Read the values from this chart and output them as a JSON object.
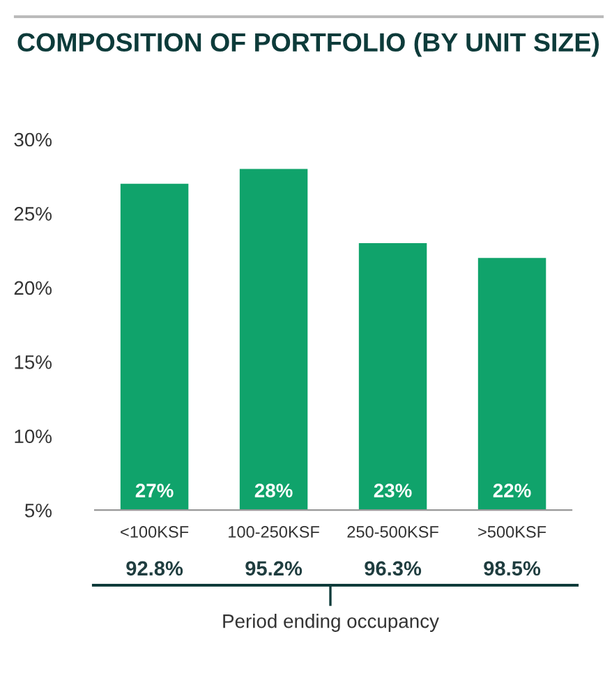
{
  "chart_data": {
    "type": "bar",
    "title": "COMPOSITION OF PORTFOLIO (BY UNIT SIZE)",
    "categories": [
      "<100KSF",
      "100-250KSF",
      "250-500KSF",
      ">500KSF"
    ],
    "values": [
      27,
      28,
      23,
      22
    ],
    "color": "#10a36b",
    "value_labels": [
      "27%",
      "28%",
      "23%",
      "22%"
    ],
    "ylim": [
      5,
      30
    ],
    "yticks": [
      {
        "value": 5,
        "label": "5%"
      },
      {
        "value": 10,
        "label": "10%"
      },
      {
        "value": 15,
        "label": "15%"
      },
      {
        "value": 20,
        "label": "20%"
      },
      {
        "value": 25,
        "label": "25%"
      },
      {
        "value": 30,
        "label": "30%"
      }
    ],
    "xlabel": "Period ending occupancy",
    "annotations": [
      "92.8%",
      "95.2%",
      "96.3%",
      "98.5%"
    ],
    "grid": false,
    "legend": false
  }
}
